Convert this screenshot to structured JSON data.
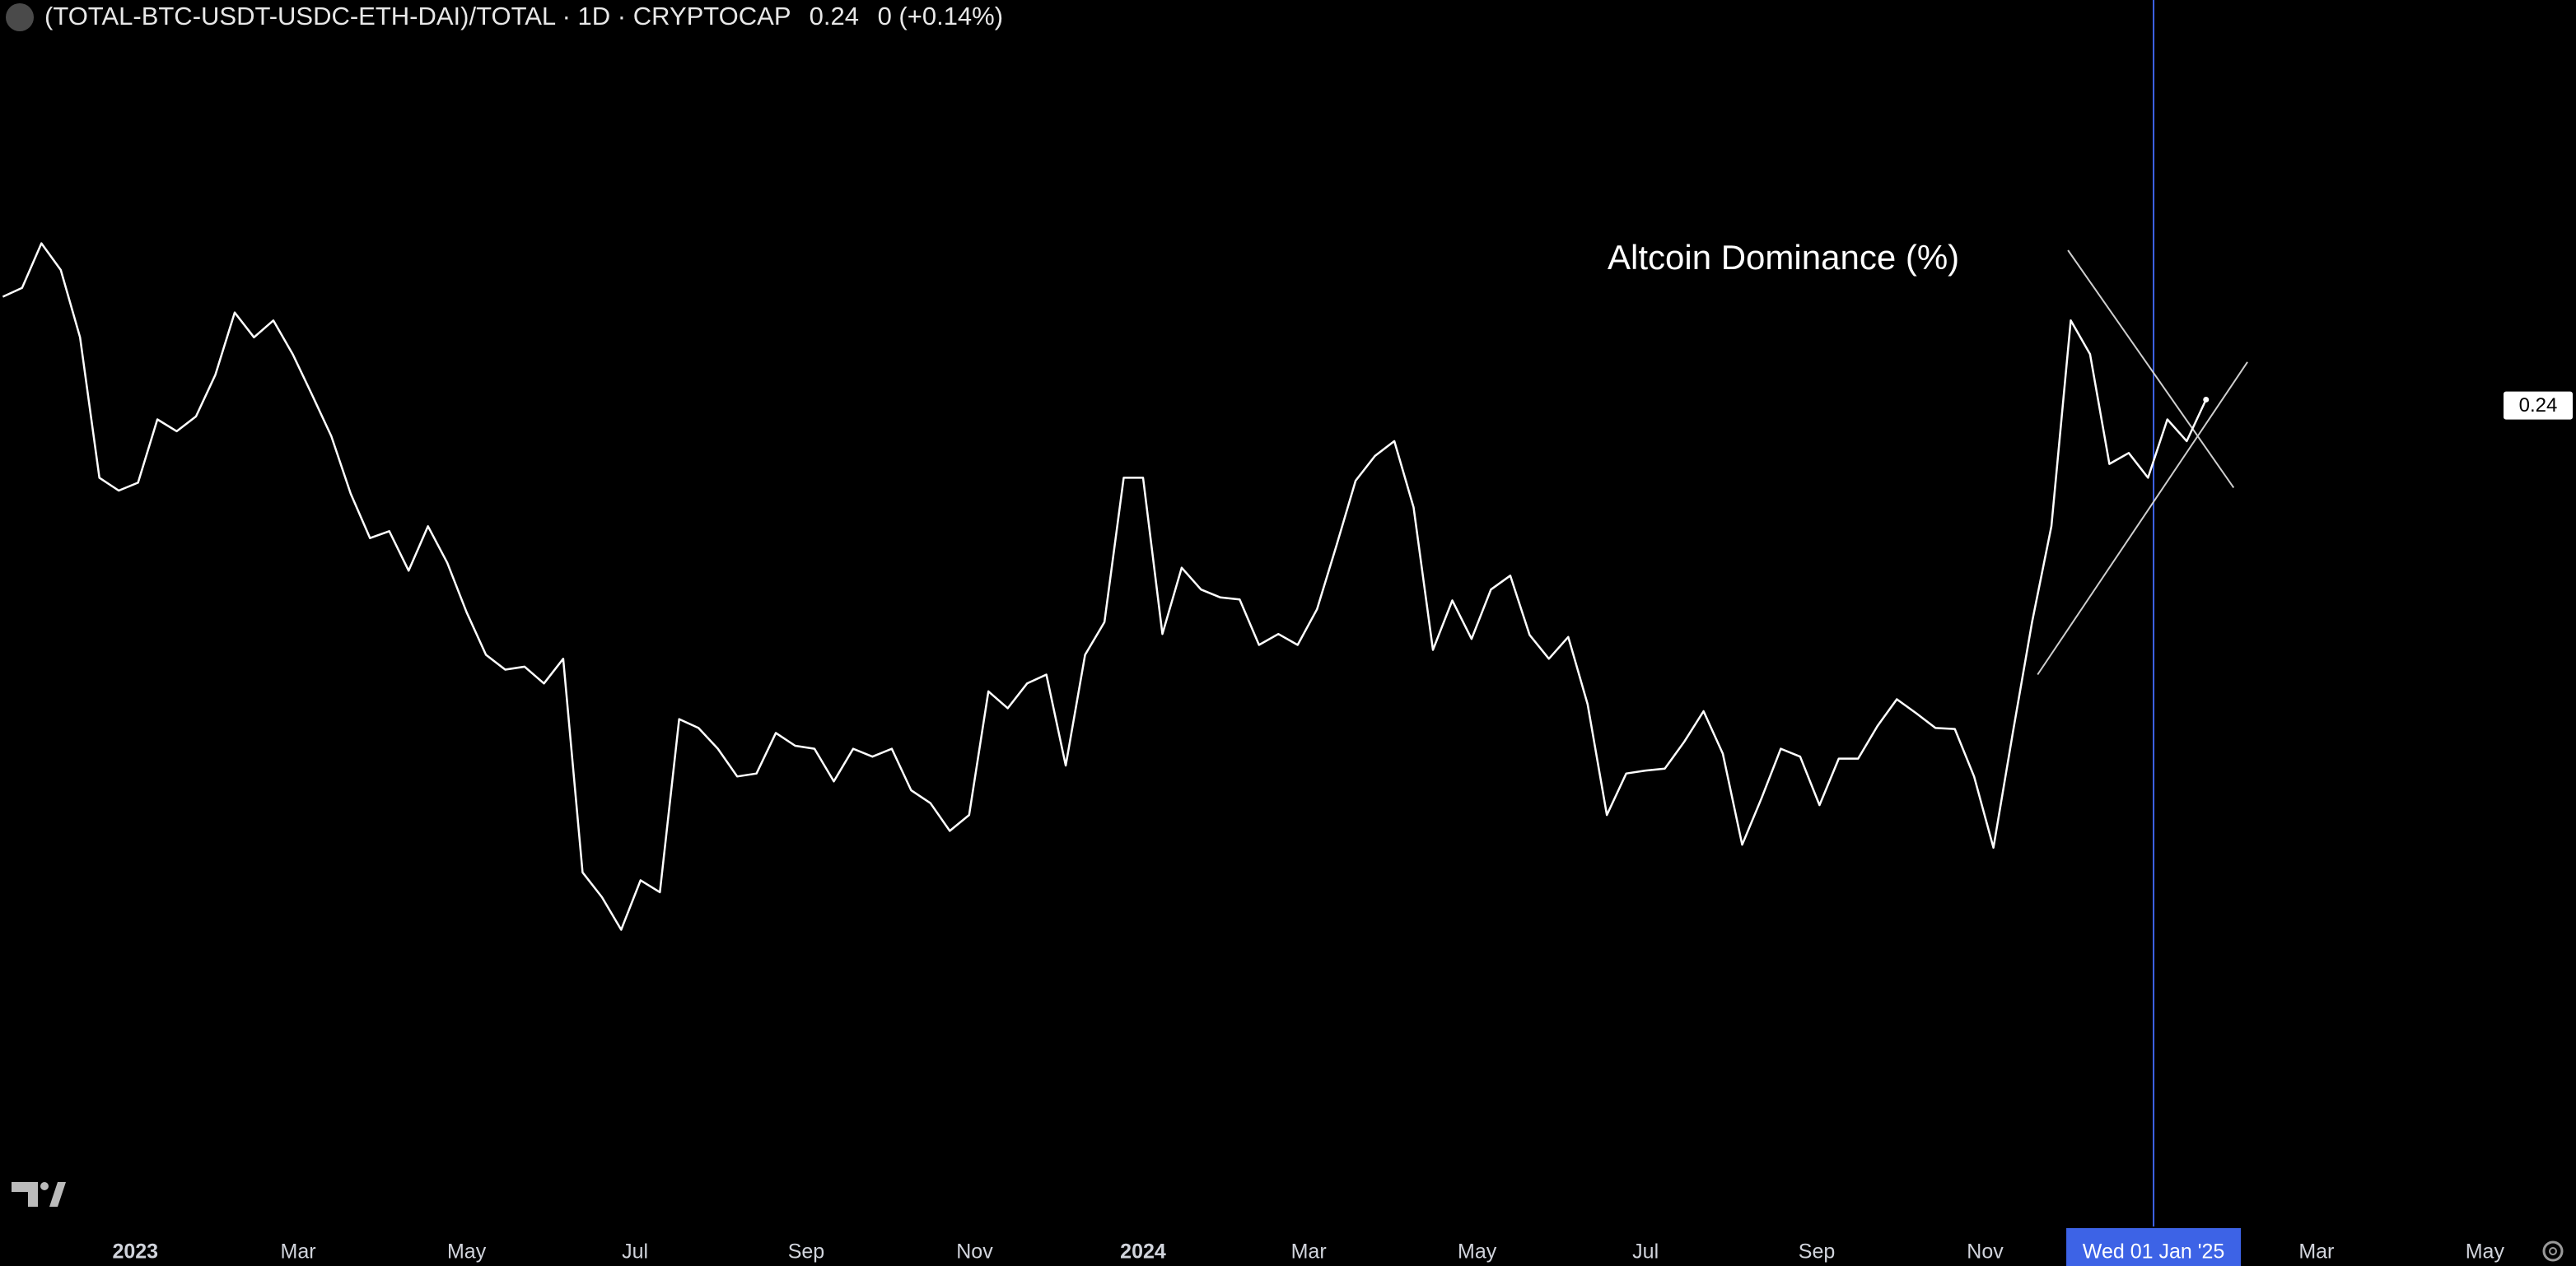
{
  "chart_data": {
    "type": "line",
    "title": "(TOTAL-BTC-USDT-USDC-ETH-DAI)/TOTAL · 1D · CRYPTOCAP",
    "last_value": 0.24,
    "change": "0 (+0.14%)",
    "annotation": "Altcoin Dominance (%)",
    "color": "#ffffff",
    "x": [
      "2022-11-14",
      "2022-11-21",
      "2022-11-28",
      "2022-12-05",
      "2022-12-12",
      "2022-12-19",
      "2022-12-26",
      "2023-01-02",
      "2023-01-09",
      "2023-01-16",
      "2023-01-23",
      "2023-01-30",
      "2023-02-06",
      "2023-02-13",
      "2023-02-20",
      "2023-02-27",
      "2023-03-06",
      "2023-03-13",
      "2023-03-20",
      "2023-03-27",
      "2023-04-03",
      "2023-04-10",
      "2023-04-17",
      "2023-04-24",
      "2023-05-01",
      "2023-05-08",
      "2023-05-15",
      "2023-05-22",
      "2023-05-29",
      "2023-06-05",
      "2023-06-12",
      "2023-06-19",
      "2023-06-26",
      "2023-07-03",
      "2023-07-10",
      "2023-07-17",
      "2023-07-24",
      "2023-07-31",
      "2023-08-07",
      "2023-08-14",
      "2023-08-21",
      "2023-08-28",
      "2023-09-04",
      "2023-09-11",
      "2023-09-18",
      "2023-09-25",
      "2023-10-02",
      "2023-10-09",
      "2023-10-16",
      "2023-10-23",
      "2023-10-30",
      "2023-11-06",
      "2023-11-13",
      "2023-11-20",
      "2023-11-27",
      "2023-12-04",
      "2023-12-11",
      "2023-12-18",
      "2023-12-25",
      "2024-01-01",
      "2024-01-08",
      "2024-01-15",
      "2024-01-22",
      "2024-01-29",
      "2024-02-05",
      "2024-02-12",
      "2024-02-19",
      "2024-02-26",
      "2024-03-04",
      "2024-03-11",
      "2024-03-18",
      "2024-03-25",
      "2024-04-01",
      "2024-04-08",
      "2024-04-15",
      "2024-04-22",
      "2024-04-29",
      "2024-05-06",
      "2024-05-13",
      "2024-05-20",
      "2024-05-27",
      "2024-06-03",
      "2024-06-10",
      "2024-06-17",
      "2024-06-24",
      "2024-07-01",
      "2024-07-08",
      "2024-07-15",
      "2024-07-22",
      "2024-07-29",
      "2024-08-05",
      "2024-08-12",
      "2024-08-19",
      "2024-08-26",
      "2024-09-02",
      "2024-09-09",
      "2024-09-16",
      "2024-09-23",
      "2024-09-30",
      "2024-10-07",
      "2024-10-14",
      "2024-10-21",
      "2024-10-28",
      "2024-11-04",
      "2024-11-11",
      "2024-11-18",
      "2024-11-25",
      "2024-12-02",
      "2024-12-09",
      "2024-12-16",
      "2024-12-23",
      "2024-12-30",
      "2025-01-06",
      "2025-01-13",
      "2025-01-20"
    ],
    "values": [
      0.251,
      0.2519,
      0.2564,
      0.2537,
      0.2469,
      0.2327,
      0.2314,
      0.2322,
      0.2386,
      0.2374,
      0.2389,
      0.2431,
      0.2494,
      0.2469,
      0.2486,
      0.2452,
      0.2411,
      0.2369,
      0.2311,
      0.2266,
      0.2273,
      0.2233,
      0.2278,
      0.2241,
      0.2191,
      0.2148,
      0.2133,
      0.2136,
      0.2119,
      0.2144,
      0.1928,
      0.1903,
      0.187,
      0.192,
      0.1908,
      0.2083,
      0.2074,
      0.2053,
      0.2025,
      0.2028,
      0.2069,
      0.2056,
      0.2053,
      0.202,
      0.2053,
      0.2045,
      0.2053,
      0.2011,
      0.1998,
      0.197,
      0.1986,
      0.2111,
      0.2094,
      0.2119,
      0.2128,
      0.2036,
      0.2148,
      0.2181,
      0.2327,
      0.2327,
      0.2169,
      0.2236,
      0.2214,
      0.2206,
      0.2204,
      0.2158,
      0.2169,
      0.2158,
      0.2194,
      0.2258,
      0.2324,
      0.2349,
      0.2364,
      0.2297,
      0.2153,
      0.2203,
      0.2164,
      0.2214,
      0.2228,
      0.2168,
      0.2144,
      0.2166,
      0.2098,
      0.1986,
      0.2028,
      0.2031,
      0.2033,
      0.206,
      0.2091,
      0.2048,
      0.1956,
      0.2003,
      0.2053,
      0.2045,
      0.1996,
      0.2043,
      0.2043,
      0.2076,
      0.2103,
      0.2089,
      0.2074,
      0.2073,
      0.2025,
      0.1953,
      0.2069,
      0.2181,
      0.2278,
      0.2486,
      0.2452,
      0.2341,
      0.2352,
      0.2327,
      0.2386,
      0.2364,
      0.2406
    ],
    "xlim": [
      "2022-11-13",
      "2025-06-03"
    ],
    "ylim": [
      0.157,
      0.281
    ],
    "xticks": [
      {
        "value": "2023-01-01",
        "label": "2023"
      },
      {
        "value": "2023-03-01",
        "label": "Mar"
      },
      {
        "value": "2023-05-01",
        "label": "May"
      },
      {
        "value": "2023-07-01",
        "label": "Jul"
      },
      {
        "value": "2023-09-01",
        "label": "Sep"
      },
      {
        "value": "2023-11-01",
        "label": "Nov"
      },
      {
        "value": "2024-01-01",
        "label": "2024"
      },
      {
        "value": "2024-03-01",
        "label": "Mar"
      },
      {
        "value": "2024-05-01",
        "label": "May"
      },
      {
        "value": "2024-07-01",
        "label": "Jul"
      },
      {
        "value": "2024-09-01",
        "label": "Sep"
      },
      {
        "value": "2024-11-01",
        "label": "Nov"
      },
      {
        "value": "2025-03-01",
        "label": "Mar"
      },
      {
        "value": "2025-05-01",
        "label": "May"
      }
    ],
    "crosshair": {
      "x": "2025-01-01",
      "label": "Wed 01 Jan '25",
      "color": "#3d63e6"
    },
    "trendlines": [
      {
        "x": [
          "2024-12-01",
          "2025-01-30"
        ],
        "y": [
          0.2557,
          0.2317
        ]
      },
      {
        "x": [
          "2024-11-20",
          "2025-02-04"
        ],
        "y": [
          0.2128,
          0.2444
        ]
      }
    ]
  }
}
